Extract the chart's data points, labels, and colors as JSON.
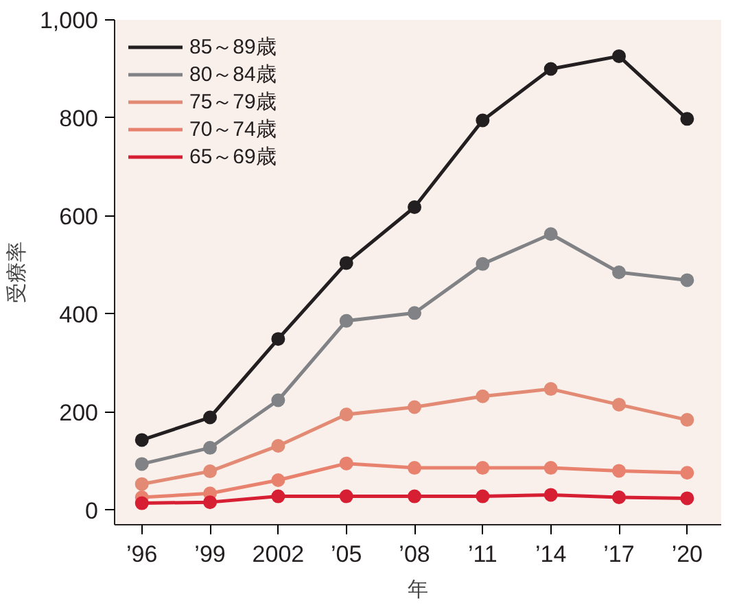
{
  "chart_data": {
    "type": "line",
    "xlabel": "年",
    "ylabel": "受療率",
    "x": [
      1996,
      1999,
      2002,
      2005,
      2008,
      2011,
      2014,
      2017,
      2020
    ],
    "xlim": [
      1994.8,
      2021.5
    ],
    "xticks": [
      {
        "value": 1996,
        "label": "’96"
      },
      {
        "value": 1999,
        "label": "’99"
      },
      2002,
      {
        "value": 2005,
        "label": "’05"
      },
      {
        "value": 2008,
        "label": "’08"
      },
      {
        "value": 2011,
        "label": "’11"
      },
      {
        "value": 2014,
        "label": "’14"
      },
      {
        "value": 2017,
        "label": "’17"
      },
      {
        "value": 2020,
        "label": "’20"
      }
    ],
    "ylim": [
      -30,
      1000
    ],
    "yticks": [
      0,
      200,
      400,
      600,
      800,
      {
        "value": 1000,
        "label": "1,000"
      }
    ],
    "grid": false,
    "legend": "top left",
    "marker": "circle",
    "line_style": "solid",
    "series": [
      {
        "name": "85～89歳",
        "color": "#231f20",
        "values": [
          143,
          189,
          349,
          504,
          618,
          795,
          900,
          926,
          798
        ]
      },
      {
        "name": "80～84歳",
        "color": "#808285",
        "values": [
          94,
          127,
          224,
          386,
          402,
          502,
          563,
          485,
          469
        ]
      },
      {
        "name": "75～79歳",
        "color": "#e38a74",
        "values": [
          53,
          79,
          131,
          195,
          210,
          232,
          247,
          215,
          184
        ]
      },
      {
        "name": "70～74歳",
        "color": "#e8826e",
        "values": [
          26,
          34,
          61,
          95,
          86,
          86,
          86,
          80,
          76
        ]
      },
      {
        "name": "65～69歳",
        "color": "#d71f34",
        "values": [
          14,
          16,
          28,
          28,
          28,
          28,
          31,
          26,
          24
        ]
      }
    ]
  }
}
